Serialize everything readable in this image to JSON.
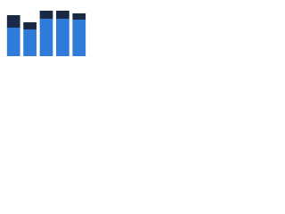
{
  "chart_data": {
    "type": "stacked-bar",
    "categories": [
      null,
      null,
      null,
      null,
      null
    ],
    "series": [
      {
        "color": "#2f7bd9",
        "values": [
          32,
          30,
          42,
          42,
          41
        ]
      },
      {
        "color": "#1b2a44",
        "values": [
          14,
          8,
          9,
          9,
          7
        ]
      }
    ],
    "ylim": [
      0,
      55
    ]
  }
}
